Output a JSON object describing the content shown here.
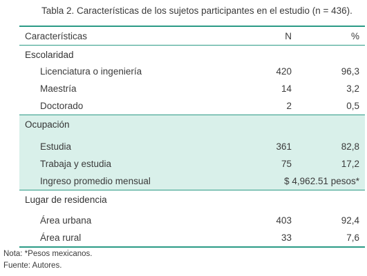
{
  "caption": "Tabla 2. Características de los sujetos participantes en el estudio (n = 436).",
  "columns": {
    "label": "Características",
    "n": "N",
    "pct": "%"
  },
  "sections": [
    {
      "title": "Escolaridad",
      "rows": [
        {
          "label": "Licenciatura o ingeniería",
          "n": "420",
          "pct": "96,3"
        },
        {
          "label": "Maestría",
          "n": "14",
          "pct": "3,2"
        },
        {
          "label": "Doctorado",
          "n": "2",
          "pct": "0,5"
        }
      ]
    },
    {
      "title": "Ocupación",
      "rows": [
        {
          "label": "Estudia",
          "n": "361",
          "pct": "82,8"
        },
        {
          "label": "Trabaja y estudia",
          "n": "75",
          "pct": "17,2"
        },
        {
          "label": "Ingreso promedio mensual",
          "merged": "$ 4,962.51 pesos*"
        }
      ]
    },
    {
      "title": "Lugar de residencia",
      "rows": [
        {
          "label": "Área urbana",
          "n": "403",
          "pct": "92,4"
        },
        {
          "label": "Área rural",
          "n": "33",
          "pct": "7,6"
        }
      ]
    }
  ],
  "notes": {
    "nota": "Nota: *Pesos mexicanos.",
    "fuente": "Fuente: Autores."
  },
  "colors": {
    "rule": "#2a9a85",
    "shade": "#d9f0ea"
  }
}
